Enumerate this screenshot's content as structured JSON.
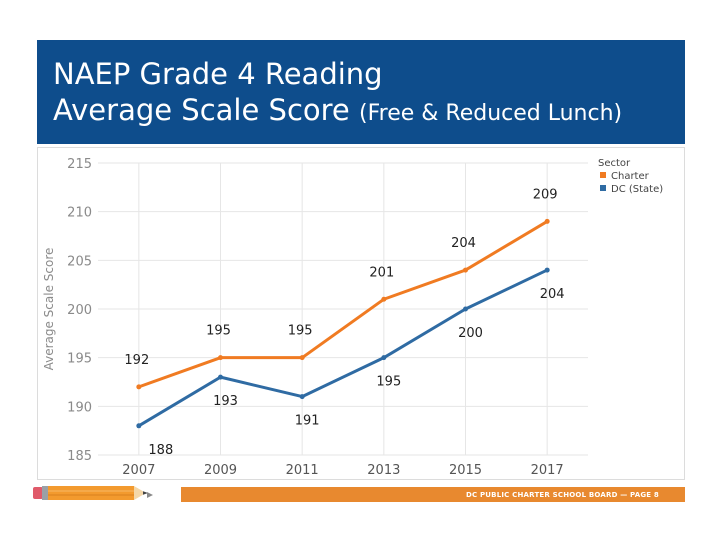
{
  "slide": {
    "title_line1": "NAEP Grade 4 Reading",
    "title_line2_main": "Average Scale Score",
    "title_line2_paren": "(Free & Reduced Lunch)",
    "footer_text": "DC PUBLIC CHARTER SCHOOL BOARD — PAGE 8"
  },
  "colors": {
    "title_band": "#0e4d8c",
    "footer_bar": "#e8892f",
    "charter": "#f07b22",
    "dc_state": "#2f6ba3"
  },
  "chart_data": {
    "type": "line",
    "title": "",
    "xlabel": "",
    "ylabel": "Average Scale Score",
    "categories": [
      "2007",
      "2009",
      "2011",
      "2013",
      "2015",
      "2017"
    ],
    "ylim": [
      185,
      215
    ],
    "yticks": [
      185,
      190,
      195,
      200,
      205,
      210,
      215
    ],
    "grid": true,
    "legend": {
      "title": "Sector",
      "placement": "top-right"
    },
    "series": [
      {
        "name": "Charter",
        "color": "#f07b22",
        "values": [
          192,
          195,
          195,
          201,
          204,
          209
        ]
      },
      {
        "name": "DC (State)",
        "color": "#2f6ba3",
        "values": [
          188,
          193,
          191,
          195,
          200,
          204
        ]
      }
    ]
  }
}
